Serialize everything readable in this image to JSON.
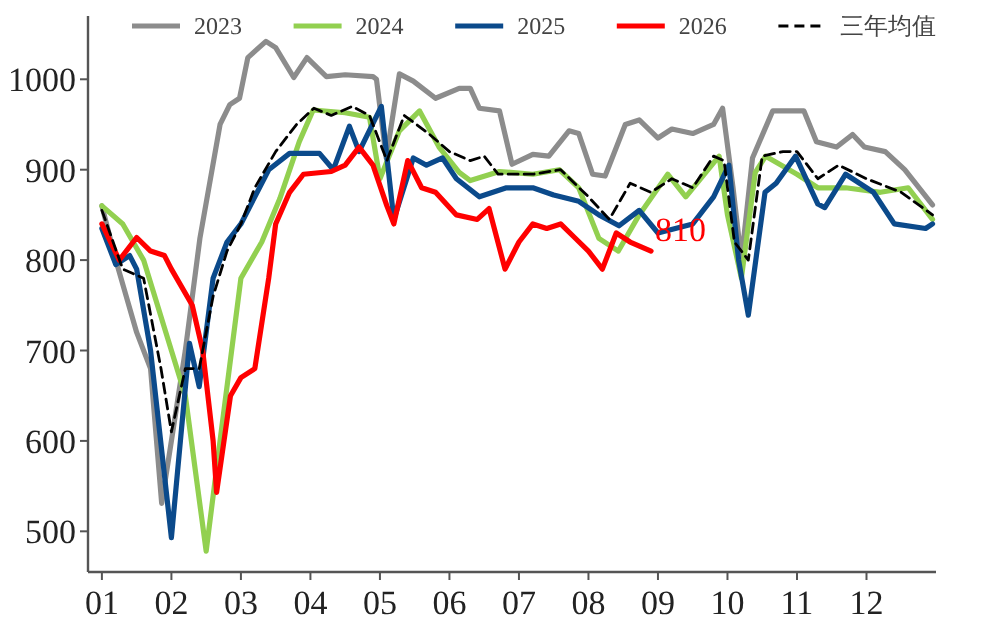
{
  "chart_data": {
    "type": "line",
    "legend": "top",
    "grid": false,
    "marker": "none",
    "xlim": [
      0.8,
      13
    ],
    "ylim": [
      455,
      1070
    ],
    "xticks": [
      {
        "value": 1,
        "label": "01"
      },
      {
        "value": 2,
        "label": "02"
      },
      {
        "value": 3,
        "label": "03"
      },
      {
        "value": 4,
        "label": "04"
      },
      {
        "value": 5,
        "label": "05"
      },
      {
        "value": 6,
        "label": "06"
      },
      {
        "value": 7,
        "label": "07"
      },
      {
        "value": 8,
        "label": "08"
      },
      {
        "value": 9,
        "label": "09"
      },
      {
        "value": 10,
        "label": "10"
      },
      {
        "value": 11,
        "label": "11"
      },
      {
        "value": 12,
        "label": "12"
      }
    ],
    "yticks": [
      500,
      600,
      700,
      800,
      900,
      1000
    ],
    "annotations": [
      {
        "text": "810",
        "x": 8.9,
        "y": 810
      }
    ],
    "series": [
      {
        "name": "2023",
        "color": "#8c8c8c",
        "line_style": "solid",
        "x": [
          1.0,
          1.2,
          1.5,
          1.7,
          1.86,
          2.0,
          2.2,
          2.41,
          2.7,
          2.84,
          2.98,
          3.1,
          3.36,
          3.5,
          3.76,
          3.95,
          4.23,
          4.5,
          4.9,
          4.95,
          5.09,
          5.28,
          5.48,
          5.8,
          6.14,
          6.3,
          6.43,
          6.72,
          6.9,
          7.2,
          7.43,
          7.72,
          7.86,
          8.06,
          8.24,
          8.53,
          8.73,
          9.0,
          9.2,
          9.5,
          9.8,
          9.93,
          10.08,
          10.2,
          10.36,
          10.65,
          11.1,
          11.28,
          11.57,
          11.8,
          11.97,
          12.27,
          12.55,
          12.95
        ],
        "values": [
          860,
          800,
          720,
          680,
          531,
          600,
          700,
          824,
          950,
          972,
          979,
          1024,
          1042,
          1035,
          1002,
          1024,
          1003,
          1005,
          1003,
          1000,
          913,
          1006,
          998,
          979,
          990,
          990,
          968,
          965,
          906,
          917,
          915,
          943,
          940,
          895,
          893,
          950,
          955,
          935,
          945,
          940,
          950,
          968,
          880,
          800,
          913,
          965,
          965,
          931,
          925,
          939,
          925,
          920,
          900,
          861
        ]
      },
      {
        "name": "2024",
        "color": "#92d050",
        "line_style": "solid",
        "x": [
          1.0,
          1.3,
          1.6,
          2.0,
          2.2,
          2.5,
          2.7,
          3.0,
          3.3,
          3.56,
          3.84,
          4.04,
          4.5,
          4.85,
          5.0,
          5.28,
          5.57,
          5.85,
          6.14,
          6.3,
          6.72,
          7.2,
          7.58,
          7.86,
          8.15,
          8.43,
          8.73,
          9.14,
          9.4,
          9.88,
          10.0,
          10.2,
          10.4,
          10.55,
          11.0,
          11.3,
          11.7,
          12.2,
          12.6,
          12.95
        ],
        "values": [
          860,
          840,
          800,
          700,
          650,
          478,
          600,
          780,
          820,
          868,
          931,
          966,
          963,
          958,
          890,
          943,
          965,
          925,
          897,
          888,
          898,
          895,
          900,
          880,
          824,
          810,
          850,
          895,
          870,
          915,
          850,
          780,
          897,
          915,
          895,
          880,
          880,
          875,
          880,
          845
        ]
      },
      {
        "name": "2025",
        "color": "#0b4a8b",
        "line_style": "solid",
        "x": [
          1.0,
          1.2,
          1.4,
          1.5,
          1.7,
          2.0,
          2.26,
          2.4,
          2.6,
          2.8,
          3.0,
          3.2,
          3.4,
          3.7,
          3.93,
          4.13,
          4.33,
          4.56,
          4.7,
          5.02,
          5.2,
          5.48,
          5.67,
          5.9,
          6.1,
          6.43,
          6.82,
          7.2,
          7.5,
          7.86,
          8.15,
          8.44,
          8.73,
          9.0,
          9.5,
          9.8,
          10.02,
          10.16,
          10.3,
          10.54,
          10.7,
          10.98,
          11.3,
          11.4,
          11.7,
          12.1,
          12.4,
          12.85,
          12.95
        ],
        "values": [
          835,
          795,
          805,
          790,
          700,
          493,
          708,
          660,
          780,
          820,
          840,
          870,
          900,
          918,
          918,
          918,
          900,
          948,
          920,
          970,
          845,
          913,
          905,
          913,
          890,
          870,
          880,
          880,
          872,
          865,
          850,
          838,
          855,
          830,
          840,
          870,
          905,
          800,
          739,
          875,
          885,
          915,
          862,
          858,
          895,
          875,
          840,
          835,
          840
        ]
      },
      {
        "name": "2026",
        "color": "#ff0000",
        "line_style": "solid",
        "x": [
          1.0,
          1.25,
          1.5,
          1.7,
          1.9,
          2.0,
          2.3,
          2.45,
          2.6,
          2.65,
          2.85,
          3.0,
          3.2,
          3.4,
          3.5,
          3.7,
          3.9,
          4.3,
          4.5,
          4.7,
          4.9,
          5.1,
          5.2,
          5.4,
          5.6,
          5.8,
          6.1,
          6.4,
          6.57,
          6.8,
          7.0,
          7.2,
          7.4,
          7.6,
          7.8,
          8.0,
          8.2,
          8.4,
          8.6,
          8.9
        ],
        "values": [
          840,
          800,
          825,
          810,
          805,
          790,
          750,
          700,
          600,
          543,
          650,
          670,
          680,
          780,
          840,
          875,
          895,
          898,
          905,
          925,
          905,
          860,
          840,
          910,
          880,
          875,
          850,
          845,
          857,
          790,
          820,
          840,
          835,
          840,
          825,
          810,
          790,
          830,
          820,
          810
        ]
      },
      {
        "name": "三年均值",
        "color": "#000000",
        "line_style": "dashed",
        "x": [
          1.0,
          1.3,
          1.6,
          1.85,
          2.0,
          2.2,
          2.4,
          2.6,
          2.8,
          3.0,
          3.2,
          3.5,
          3.8,
          4.05,
          4.3,
          4.6,
          4.85,
          5.1,
          5.35,
          5.7,
          6.0,
          6.3,
          6.5,
          6.7,
          7.2,
          7.6,
          8.0,
          8.3,
          8.6,
          8.9,
          9.2,
          9.5,
          9.8,
          9.95,
          10.1,
          10.3,
          10.5,
          10.8,
          11.0,
          11.3,
          11.6,
          12.0,
          12.5,
          12.95
        ],
        "values": [
          855,
          790,
          780,
          680,
          610,
          680,
          680,
          760,
          810,
          840,
          880,
          920,
          950,
          968,
          960,
          970,
          960,
          910,
          960,
          940,
          920,
          910,
          915,
          895,
          895,
          900,
          870,
          845,
          885,
          875,
          890,
          880,
          915,
          910,
          820,
          800,
          915,
          920,
          920,
          890,
          905,
          890,
          875,
          850
        ]
      }
    ]
  }
}
